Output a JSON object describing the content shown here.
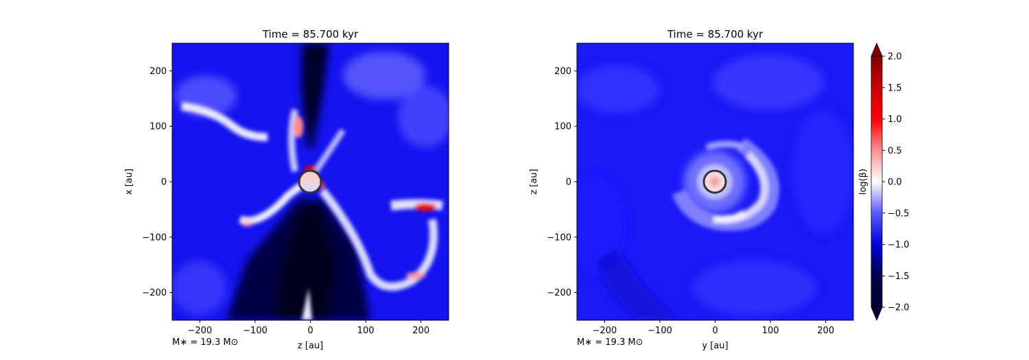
{
  "chart_data": [
    {
      "type": "heatmap",
      "title": "Time = 85.700 kyr",
      "xlabel": "z [au]",
      "ylabel": "x [au]",
      "xlim": [
        -250,
        250
      ],
      "ylim": [
        -250,
        250
      ],
      "xticks": [
        -200,
        -100,
        0,
        100,
        200
      ],
      "yticks": [
        -200,
        -100,
        0,
        100,
        200
      ],
      "xtick_labels": [
        "−200",
        "−100",
        "0",
        "100",
        "200"
      ],
      "ytick_labels": [
        "−200",
        "−100",
        "0",
        "100",
        "200"
      ],
      "annotation": "M∗ = 19.3 M⊙",
      "sink_center": [
        0,
        0
      ],
      "sink_radius": 20,
      "colormap": "seismic",
      "description_of_field": "log(beta) map, mostly blue (-1 to -0.5) with dark bipolar cavities along the vertical axis and red spots near the sink and along filaments"
    },
    {
      "type": "heatmap",
      "title": "Time = 85.700 kyr",
      "xlabel": "y [au]",
      "ylabel": "z [au]",
      "xlim": [
        -250,
        250
      ],
      "ylim": [
        -250,
        250
      ],
      "xticks": [
        -200,
        -100,
        0,
        100,
        200
      ],
      "yticks": [
        -200,
        -100,
        0,
        100,
        200
      ],
      "xtick_labels": [
        "−200",
        "−100",
        "0",
        "100",
        "200"
      ],
      "ytick_labels": [
        "−200",
        "−100",
        "0",
        "100",
        "200"
      ],
      "annotation": "M∗ = 19.3 M⊙",
      "sink_center": [
        0,
        0
      ],
      "sink_radius": 20,
      "colormap": "seismic",
      "description_of_field": "log(beta) map, blue background with a spiral arm of higher beta winding around the central sink"
    }
  ],
  "colorbar": {
    "label": "log(β)",
    "range": [
      -2.0,
      2.0
    ],
    "ticks": [
      -2.0,
      -1.5,
      -1.0,
      -0.5,
      0.0,
      0.5,
      1.0,
      1.5,
      2.0
    ],
    "tick_labels": [
      "−2.0",
      "−1.5",
      "−1.0",
      "−0.5",
      "0.0",
      "0.5",
      "1.0",
      "1.5",
      "2.0"
    ],
    "extend": "both"
  },
  "colors": {
    "deep_blue": "#000033",
    "blue": "#0000ff",
    "white": "#ffffff",
    "red": "#ff0000",
    "deep_red": "#800000",
    "sink_edge": "#333333"
  }
}
